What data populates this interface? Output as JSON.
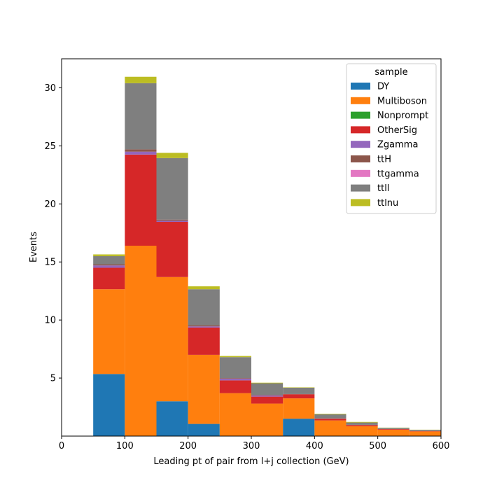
{
  "chart_data": {
    "type": "bar",
    "stacked": true,
    "bin_edges": [
      50,
      100,
      150,
      200,
      250,
      300,
      350,
      400,
      450,
      500,
      550,
      600
    ],
    "xlabel": "Leading pt of pair from l+j collection (GeV)",
    "ylabel": "Events",
    "xlim": [
      0,
      600
    ],
    "ylim": [
      0,
      32.5
    ],
    "xticks": [
      0,
      100,
      200,
      300,
      400,
      500,
      600
    ],
    "yticks": [
      5,
      10,
      15,
      20,
      25,
      30
    ],
    "grid": false,
    "legend": {
      "title": "sample",
      "position": "top-right"
    },
    "series": [
      {
        "name": "DY",
        "color": "#1f77b4",
        "values": [
          5.35,
          0.0,
          3.0,
          1.05,
          0.0,
          0.0,
          1.5,
          0.0,
          0.0,
          0.0,
          0.0
        ]
      },
      {
        "name": "Multiboson",
        "color": "#ff7f0e",
        "values": [
          7.3,
          16.4,
          10.7,
          5.95,
          3.7,
          2.8,
          1.75,
          1.35,
          0.85,
          0.55,
          0.4
        ]
      },
      {
        "name": "Nonprompt",
        "color": "#2ca02c",
        "values": [
          0.0,
          0.0,
          0.0,
          0.0,
          0.0,
          0.0,
          0.0,
          0.0,
          0.0,
          0.0,
          0.0
        ]
      },
      {
        "name": "OtherSig",
        "color": "#d62728",
        "values": [
          1.85,
          7.85,
          4.75,
          2.35,
          1.1,
          0.6,
          0.35,
          0.15,
          0.1,
          0.05,
          0.03
        ]
      },
      {
        "name": "Zgamma",
        "color": "#9467bd",
        "values": [
          0.2,
          0.25,
          0.1,
          0.1,
          0.15,
          0.1,
          0.0,
          0.0,
          0.0,
          0.0,
          0.0
        ]
      },
      {
        "name": "ttH",
        "color": "#8c564b",
        "values": [
          0.1,
          0.2,
          0.1,
          0.1,
          0.05,
          0.05,
          0.02,
          0.02,
          0.02,
          0.01,
          0.01
        ]
      },
      {
        "name": "ttgamma",
        "color": "#e377c2",
        "values": [
          0.0,
          0.0,
          0.0,
          0.0,
          0.0,
          0.0,
          0.0,
          0.0,
          0.0,
          0.0,
          0.0
        ]
      },
      {
        "name": "ttll",
        "color": "#7f7f7f",
        "values": [
          0.7,
          5.7,
          5.3,
          3.1,
          1.8,
          1.0,
          0.55,
          0.35,
          0.2,
          0.1,
          0.1
        ]
      },
      {
        "name": "ttlnu",
        "color": "#bcbd22",
        "values": [
          0.15,
          0.55,
          0.45,
          0.25,
          0.1,
          0.05,
          0.03,
          0.05,
          0.05,
          0.02,
          0.01
        ]
      }
    ]
  }
}
